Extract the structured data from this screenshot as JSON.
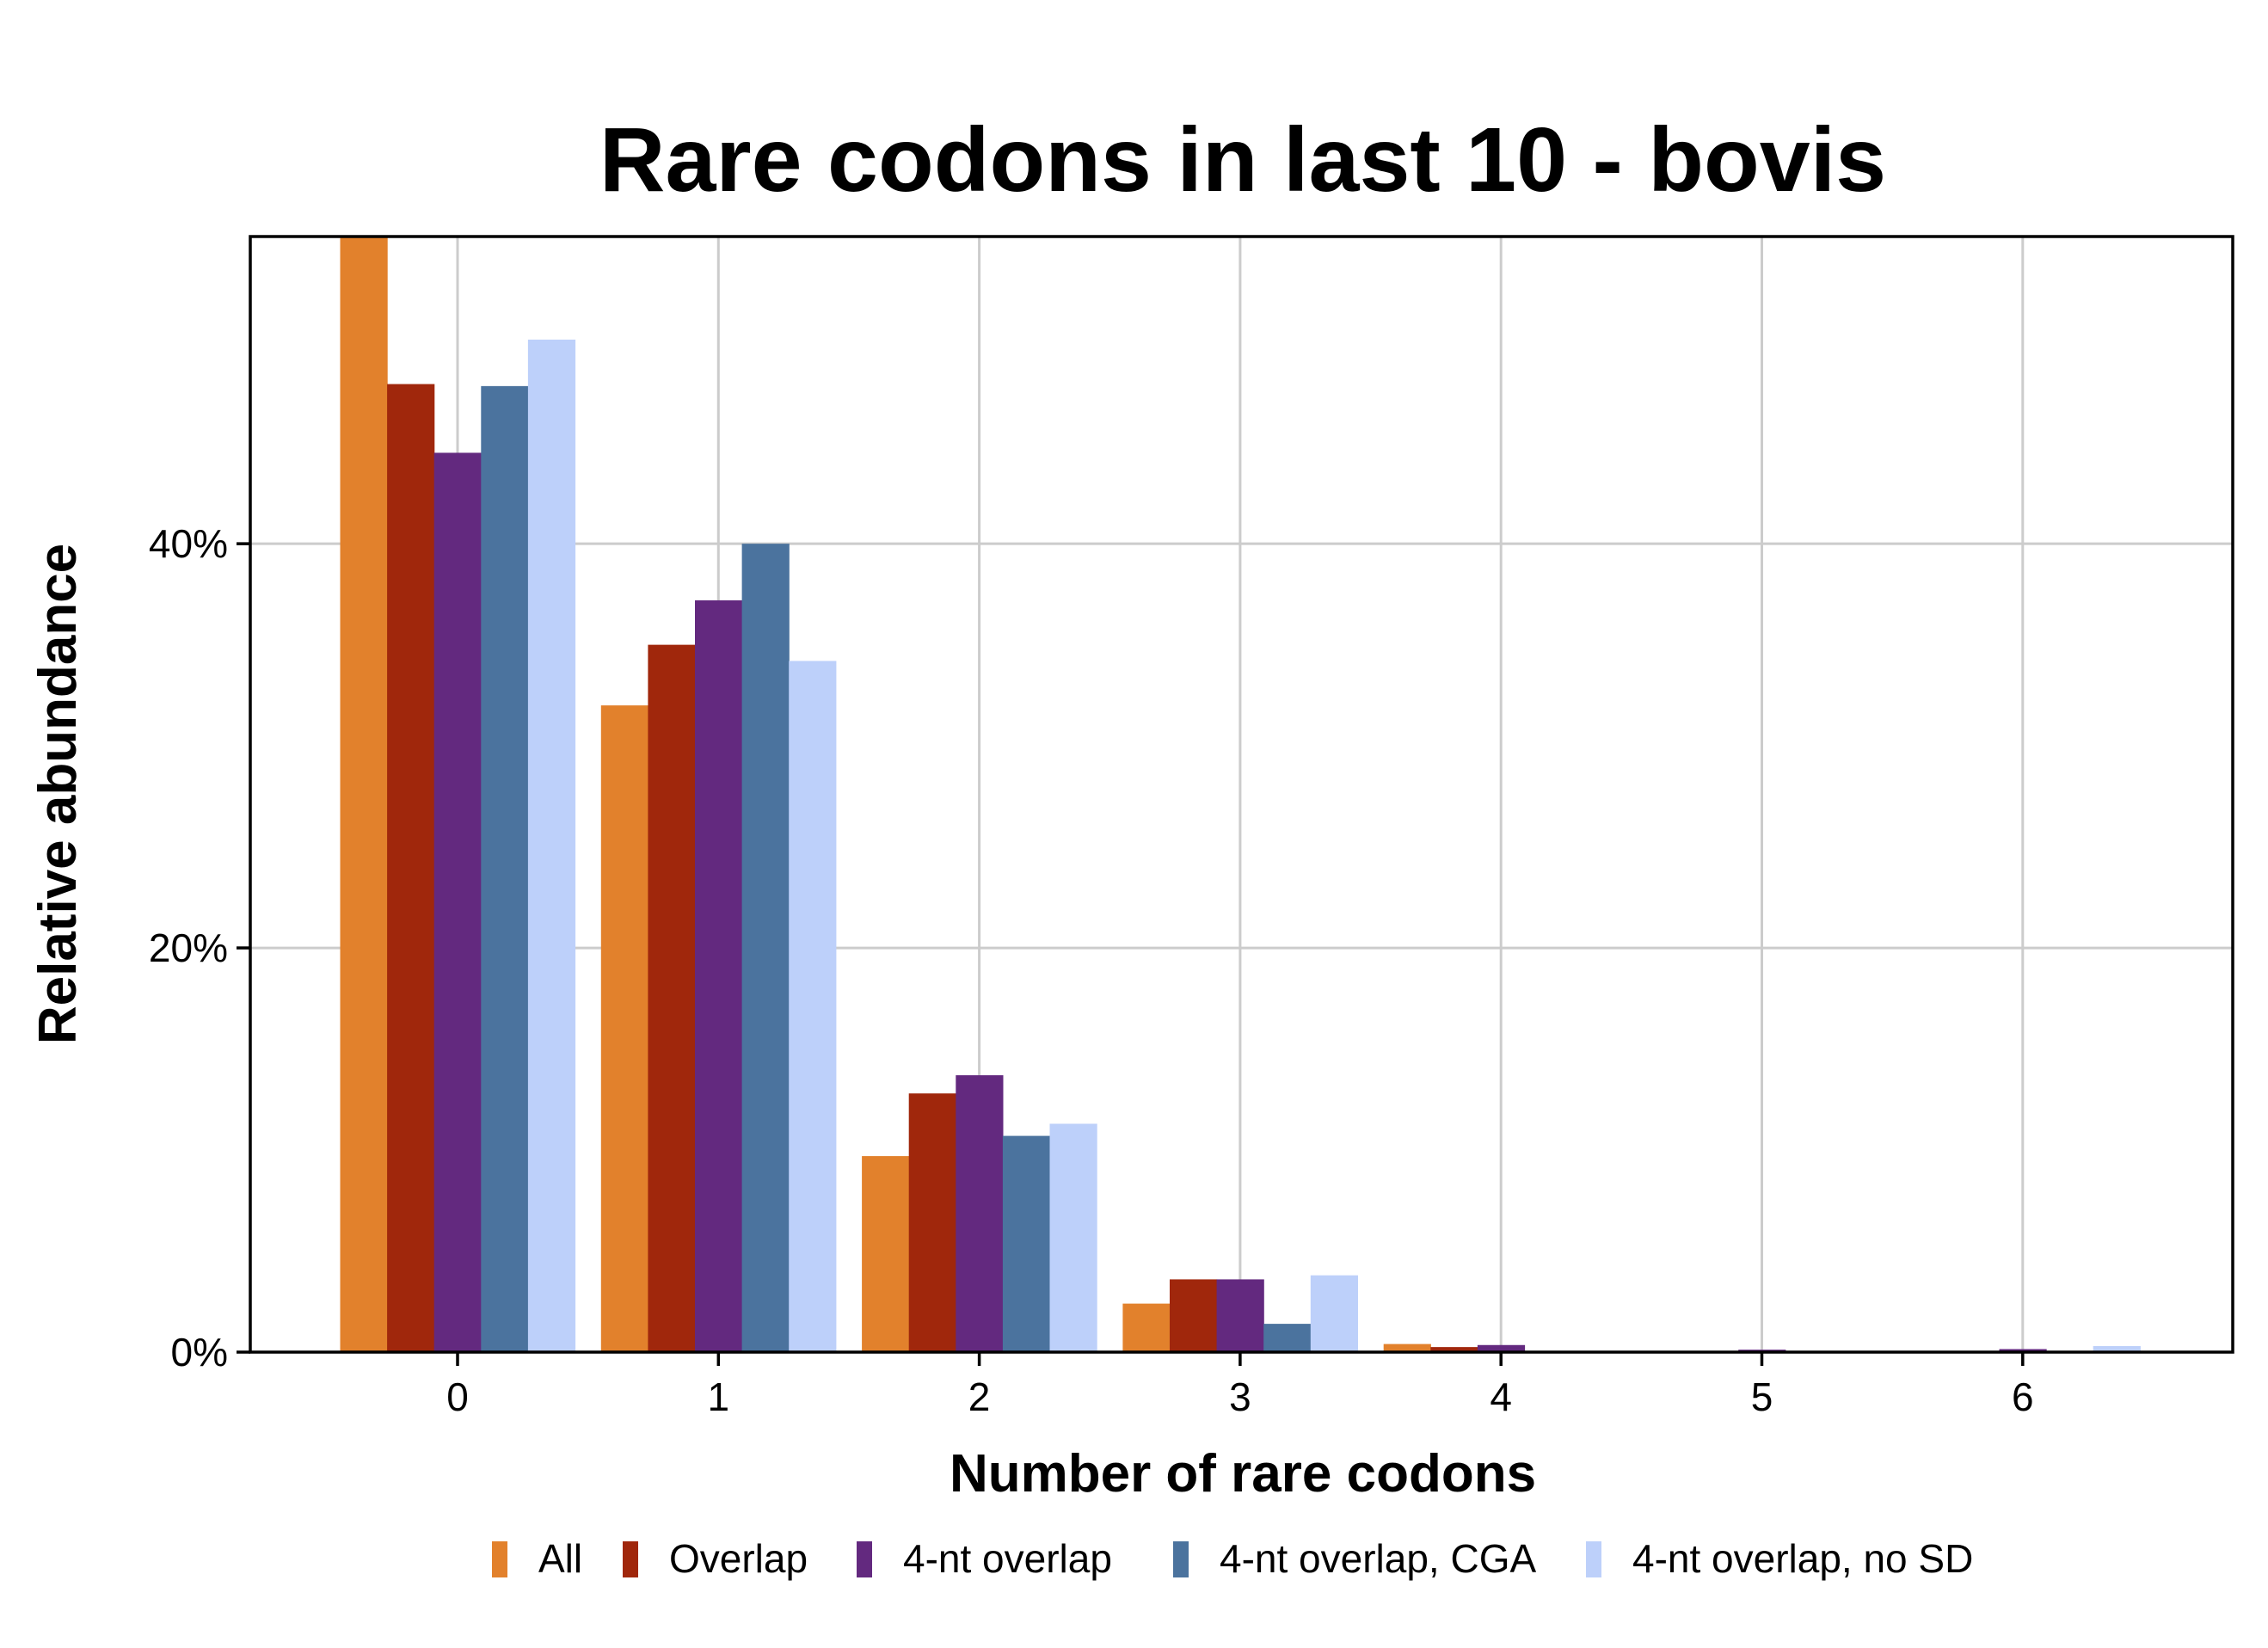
{
  "chart_data": {
    "type": "bar",
    "title": "Rare codons in last 10 - bovis",
    "xlabel": "Number of rare codons",
    "ylabel": "Relative abundance",
    "categories": [
      "0",
      "1",
      "2",
      "3",
      "4",
      "5",
      "6"
    ],
    "yticks": [
      0,
      20,
      40
    ],
    "ytick_labels": [
      "0%",
      "20%",
      "40%"
    ],
    "ylim": [
      0,
      55.2
    ],
    "grid": true,
    "legend_position": "bottom",
    "series": [
      {
        "name": "All",
        "color": "#E2812C",
        "values": [
          55.2,
          32.0,
          9.7,
          2.4,
          0.4,
          0.0,
          0.0
        ]
      },
      {
        "name": "Overlap",
        "color": "#A0270C",
        "values": [
          47.9,
          35.0,
          12.8,
          3.6,
          0.25,
          0.05,
          0.05
        ]
      },
      {
        "name": "4-nt overlap",
        "color": "#63297F",
        "values": [
          44.5,
          37.2,
          13.7,
          3.6,
          0.35,
          0.12,
          0.15
        ]
      },
      {
        "name": "4-nt overlap, CGA",
        "color": "#4B739E",
        "values": [
          47.8,
          40.0,
          10.7,
          1.4,
          0.0,
          0.0,
          0.0
        ]
      },
      {
        "name": "4-nt overlap, no SD",
        "color": "#BDD0FA",
        "values": [
          50.1,
          34.2,
          11.3,
          3.8,
          0.0,
          0.0,
          0.3
        ]
      }
    ]
  }
}
